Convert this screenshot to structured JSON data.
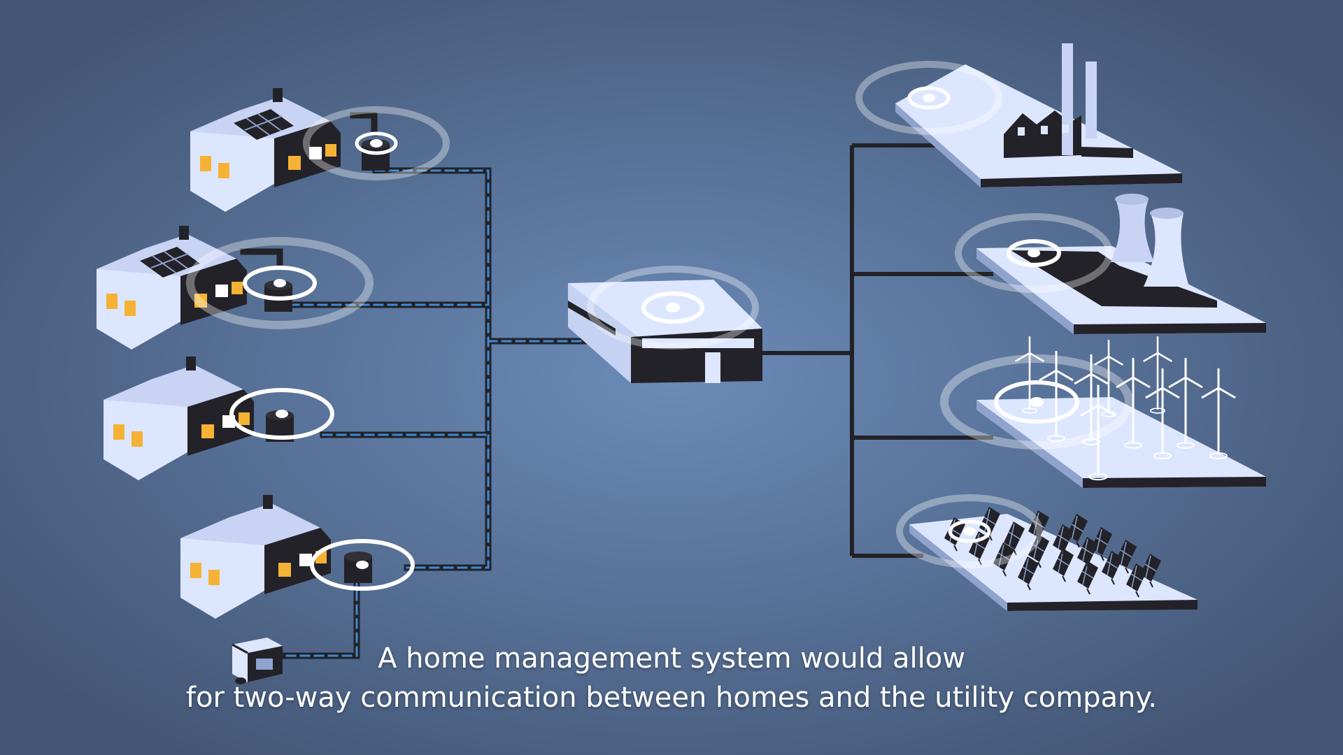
{
  "caption": {
    "line1": "A home management system would allow",
    "line2": "for two-way communication between homes and the utility company."
  },
  "colors": {
    "background_center": "#6b8bb8",
    "background_edge": "#435675",
    "building_light": "#dde6ff",
    "building_dark": "#232228",
    "window": "#f5b235",
    "data_link": "#3f8ad6",
    "wire": "#222226",
    "signal_ring": "#ffffff"
  },
  "icons": {
    "home": "house-icon",
    "solar_home": "house-with-solar-roof-icon",
    "smart_meter": "smart-meter-icon",
    "generator": "portable-generator-icon",
    "hub": "utility-hub-building-icon",
    "factory": "factory-icon",
    "nuclear": "cooling-tower-plant-icon",
    "wind": "wind-farm-icon",
    "solar_farm": "solar-farm-icon",
    "signal": "wireless-signal-icon"
  }
}
